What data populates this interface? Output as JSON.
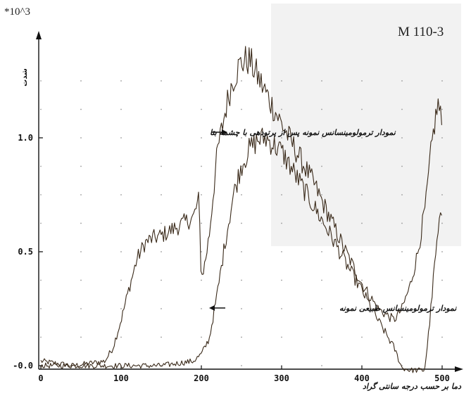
{
  "chart_data": {
    "type": "line",
    "title": "M 110-3",
    "y_multiplier": "*10^3",
    "ylabel": "شدت",
    "xlabel": "دما بر حسب درجه سانتی گراد",
    "xlim": [
      0,
      500
    ],
    "ylim": [
      -0.04,
      1.4
    ],
    "x_ticks": [
      0,
      100,
      200,
      300,
      400,
      500
    ],
    "x_tick_labels": [
      "0",
      "100",
      "200",
      "300",
      "400",
      "500"
    ],
    "y_ticks": [
      0,
      0.5,
      1.0
    ],
    "y_tick_labels": [
      "-0.0",
      "0.5",
      "1.0"
    ],
    "grid": true,
    "series": [
      {
        "name": "نمودار ترمولومینسانس نمونه پس از پرتودهی با چشمه بتا",
        "color": "#3a2a1a",
        "x": [
          0,
          20,
          40,
          60,
          80,
          90,
          100,
          110,
          120,
          130,
          140,
          150,
          160,
          170,
          180,
          190,
          197,
          200,
          205,
          210,
          215,
          220,
          225,
          230,
          235,
          240,
          245,
          250,
          255,
          260,
          270,
          280,
          290,
          300,
          320,
          340,
          360,
          380,
          400,
          420,
          440,
          450,
          460,
          470,
          480,
          485,
          490,
          495,
          500
        ],
        "values": [
          0.02,
          0.01,
          0.0,
          0.01,
          0.02,
          0.08,
          0.2,
          0.34,
          0.47,
          0.54,
          0.56,
          0.57,
          0.59,
          0.61,
          0.63,
          0.65,
          0.73,
          0.38,
          0.46,
          0.58,
          0.76,
          0.94,
          1.03,
          1.12,
          1.2,
          1.26,
          1.3,
          1.33,
          1.34,
          1.34,
          1.27,
          1.2,
          1.13,
          1.06,
          0.93,
          0.8,
          0.65,
          0.5,
          0.36,
          0.25,
          0.2,
          0.25,
          0.35,
          0.5,
          0.72,
          0.9,
          1.05,
          1.15,
          1.05
        ]
      },
      {
        "name": "نمودار ترمولومینسانس طبیعی نمونه",
        "color": "#3a2a1a",
        "x": [
          0,
          50,
          100,
          150,
          170,
          190,
          200,
          210,
          220,
          230,
          240,
          250,
          260,
          270,
          280,
          290,
          300,
          320,
          340,
          360,
          380,
          400,
          420,
          440,
          450,
          460,
          470,
          478,
          482,
          486,
          490,
          495,
          500
        ],
        "values": [
          0.0,
          0.0,
          0.0,
          0.0,
          0.01,
          0.02,
          0.05,
          0.12,
          0.32,
          0.55,
          0.75,
          0.88,
          0.95,
          0.99,
          1.0,
          0.97,
          0.94,
          0.82,
          0.7,
          0.58,
          0.45,
          0.33,
          0.2,
          0.08,
          -0.01,
          -0.02,
          -0.02,
          -0.02,
          0.1,
          0.25,
          0.42,
          0.58,
          0.68
        ]
      }
    ],
    "annotations": [
      {
        "text": "نمودار ترمولومینسانس نمونه پس از پرتودهی با چشمه بتا",
        "arrow_to": "right",
        "x": 235,
        "y": 1.02
      },
      {
        "text": "نمودار ترمولومینسانس طبیعی نمونه",
        "arrow_to": "left",
        "x": 228,
        "y": 0.25
      }
    ]
  }
}
